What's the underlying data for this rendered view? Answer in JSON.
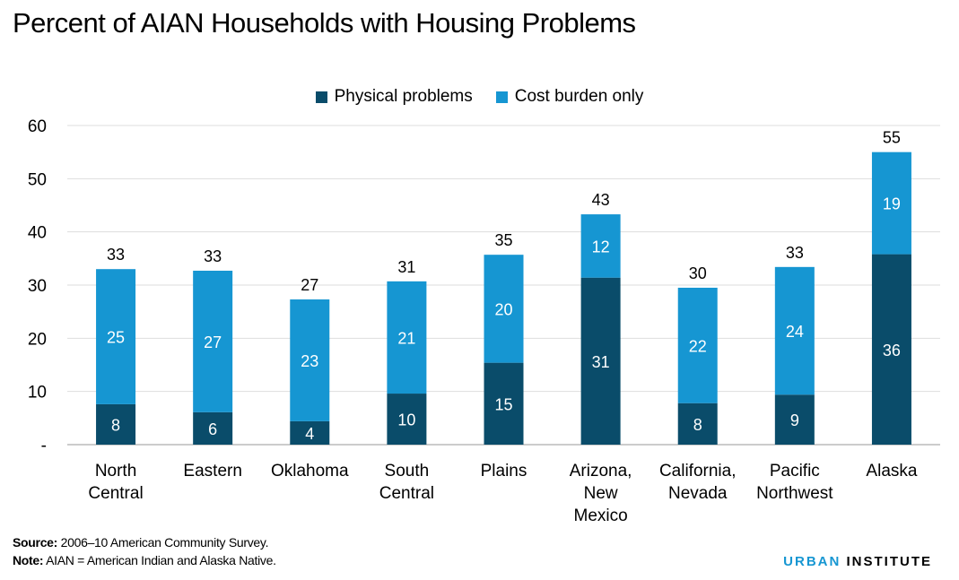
{
  "chart_data": {
    "type": "bar",
    "stacked": true,
    "title": "Percent of AIAN Households with Housing Problems",
    "categories": [
      [
        "North",
        "Central"
      ],
      [
        "Eastern"
      ],
      [
        "Oklahoma"
      ],
      [
        "South",
        "Central"
      ],
      [
        "Plains"
      ],
      [
        "Arizona,",
        "New",
        "Mexico"
      ],
      [
        "California,",
        "Nevada"
      ],
      [
        "Pacific",
        "Northwest"
      ],
      [
        "Alaska"
      ]
    ],
    "series": [
      {
        "name": "Physical problems",
        "color": "#0a4c6a",
        "values": [
          7.6,
          6.1,
          4.4,
          9.6,
          15.4,
          31.4,
          7.8,
          9.4,
          35.8
        ],
        "labels": [
          "8",
          "6",
          "4",
          "10",
          "15",
          "31",
          "8",
          "9",
          "36"
        ]
      },
      {
        "name": "Cost burden only",
        "color": "#1696d2",
        "values": [
          25.4,
          26.6,
          22.9,
          21.1,
          20.3,
          11.9,
          21.7,
          24.0,
          19.2
        ],
        "labels": [
          "25",
          "27",
          "23",
          "21",
          "20",
          "12",
          "22",
          "24",
          "19"
        ]
      }
    ],
    "total_labels": [
      "33",
      "33",
      "27",
      "31",
      "35",
      "43",
      "30",
      "33",
      "55"
    ],
    "ylim": [
      0,
      60
    ],
    "yticks": [
      0,
      10,
      20,
      30,
      40,
      50,
      60
    ],
    "ytick_labels": [
      "-",
      "10",
      "20",
      "30",
      "40",
      "50",
      "60"
    ],
    "grid": true,
    "legend_position": "top-center",
    "xlabel": "",
    "ylabel": ""
  },
  "footer": {
    "source_label": "Source:",
    "source_text": " 2006–10 American Community Survey.",
    "note_label": "Note:",
    "note_text": " AIAN = American Indian and Alaska Native.",
    "brand_urban": "URBAN",
    "brand_institute": "INSTITUTE"
  }
}
